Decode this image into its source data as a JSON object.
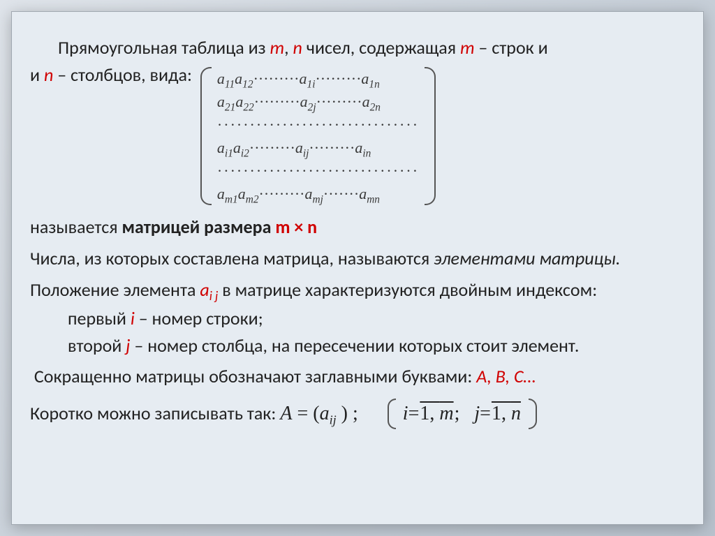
{
  "colors": {
    "accent": "#d00000",
    "text": "#222222",
    "slide_bg": "#e6ecf2",
    "border": "#a0a8b0"
  },
  "intro": {
    "t1": "Прямоугольная  таблица из ",
    "m": "m",
    "comma": ",   ",
    "n": "n",
    "t2": " чисел, содержащая   ",
    "m2": "m",
    "t3": " – строк и   ",
    "n2": "n",
    "t4": " – столбцов, вида:"
  },
  "matrix": {
    "a": "a",
    "rows": [
      [
        [
          "11"
        ],
        [
          "12"
        ],
        "·········",
        [
          "1",
          "i"
        ],
        "·········",
        [
          "1",
          "n"
        ]
      ],
      [
        [
          "21"
        ],
        [
          "22"
        ],
        "·········",
        [
          "2",
          "j"
        ],
        "·········",
        [
          "2",
          "n"
        ]
      ],
      "·······························",
      [
        [
          "i",
          "1"
        ],
        [
          "i",
          "2"
        ],
        "·········",
        [
          "ij"
        ],
        "·········",
        [
          "in"
        ]
      ],
      "·······························",
      [
        [
          "m",
          "1"
        ],
        [
          "m",
          "2"
        ],
        "·········",
        [
          "mj"
        ],
        "·······",
        [
          "mn"
        ]
      ]
    ]
  },
  "line_called": {
    "t1": "называется     ",
    "t2": "матрицей  размера    ",
    "mxn": "m × n"
  },
  "line_elements": {
    "t1": "Числа, из которых составлена матрица, называются  ",
    "t2": "элементами матрицы."
  },
  "line_position": {
    "t1": "Положение элемента ",
    "aij": "a",
    "sub": "i j",
    "t2": "  в матрице характеризуются двойным индексом:"
  },
  "line_i": {
    "t1": "первый  ",
    "i": "i",
    "t2": " – номер строки;"
  },
  "line_j": {
    "t1": "второй  ",
    "j": "j",
    "t2": " – номер столбца, на пересечении которых стоит элемент."
  },
  "line_caps": {
    "t1": "Сокращенно матрицы обозначают заглавными буквами: ",
    "abc": "A, B, C…"
  },
  "line_short": {
    "t1": "Коротко можно записывать так: ",
    "eq_A": "A",
    "eq_eq": " = ",
    "eq_open": "(",
    "eq_a": "a",
    "eq_sub": "ij",
    "eq_close": ")",
    "eq_semi": " ;",
    "eq_i": "i",
    "eq_eq2": " = ",
    "eq_1m_1": "1, ",
    "eq_1m_m": "m",
    "eq_semi2": ";",
    "eq_j": "j",
    "eq_1n_1": "1, ",
    "eq_1n_n": "n"
  }
}
